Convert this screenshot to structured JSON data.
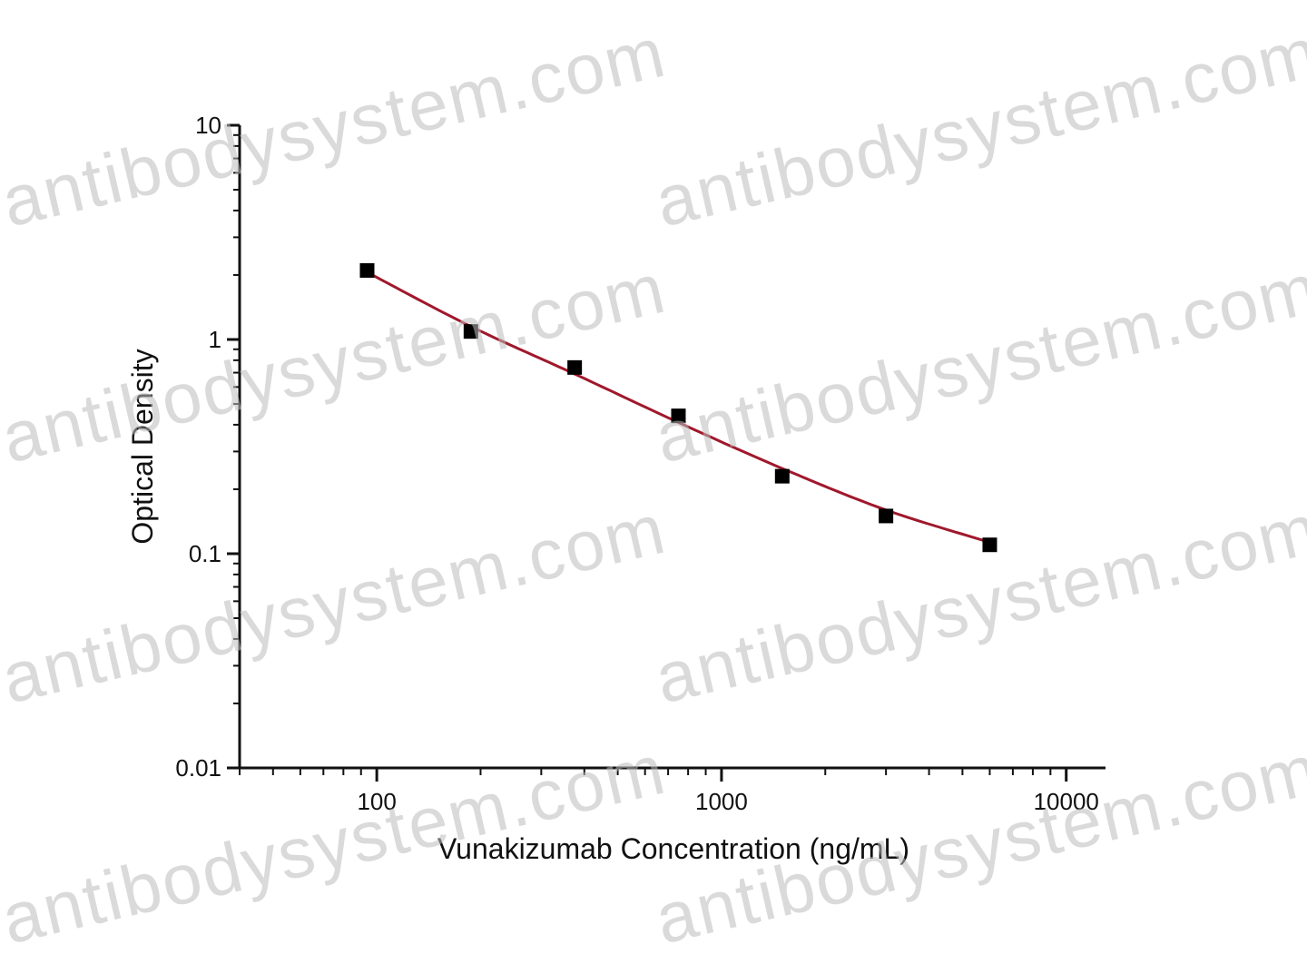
{
  "watermark": {
    "text": "antibodysystem.com",
    "color": "#bdbdbd"
  },
  "chart_data": {
    "type": "scatter",
    "xlabel": "Vunakizumab Concentration (ng/mL)",
    "ylabel": "Optical Density",
    "x_scale": "log",
    "y_scale": "log",
    "xlim": [
      40,
      13000
    ],
    "ylim": [
      0.01,
      10
    ],
    "x_ticks": [
      100,
      1000,
      10000
    ],
    "x_tick_labels": [
      "100",
      "1000",
      "10000"
    ],
    "y_ticks": [
      0.01,
      0.1,
      1,
      10
    ],
    "y_tick_labels": [
      "0.01",
      "0.1",
      "1",
      "10"
    ],
    "grid": false,
    "legend": "none",
    "marker_color": "#000000",
    "fit_color": "#a0182c",
    "series": [
      {
        "marker": "square",
        "x": [
          93.75,
          187.5,
          375,
          750,
          1500,
          3000,
          6000
        ],
        "y": [
          2.1,
          1.09,
          0.74,
          0.44,
          0.23,
          0.15,
          0.11
        ]
      }
    ],
    "fit_curve": {
      "x": [
        93.75,
        187.5,
        375,
        750,
        1500,
        3000,
        6000
      ],
      "y": [
        2.06,
        1.15,
        0.69,
        0.41,
        0.25,
        0.16,
        0.113
      ]
    }
  }
}
